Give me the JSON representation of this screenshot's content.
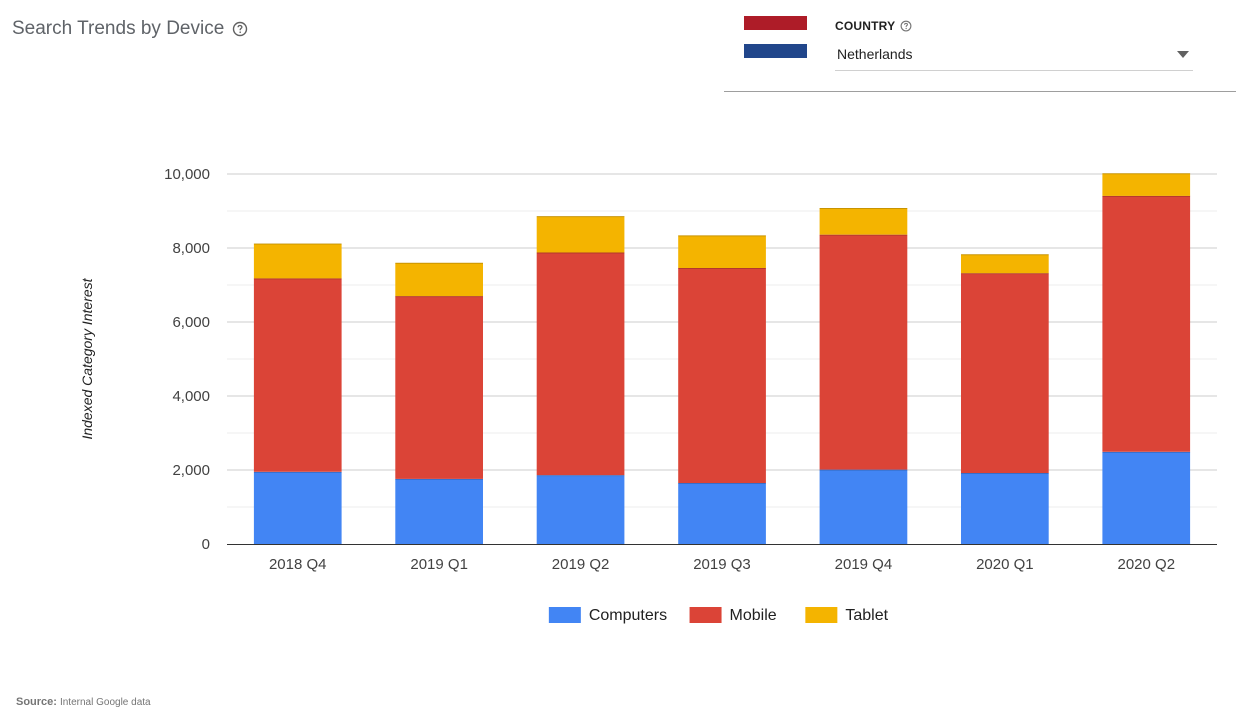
{
  "header": {
    "title": "Search Trends by Device",
    "help_icon": "help-circle-icon"
  },
  "country": {
    "label": "COUNTRY",
    "help_icon": "help-circle-icon",
    "selected": "Netherlands",
    "flag_icon": "netherlands-flag-icon",
    "flag_colors": [
      "#ae1c28",
      "#ffffff",
      "#21468b"
    ]
  },
  "source": {
    "label": "Source:",
    "value": "Internal Google data"
  },
  "chart_data": {
    "type": "bar",
    "stacked": true,
    "categories": [
      "2018 Q4",
      "2019 Q1",
      "2019 Q2",
      "2019 Q3",
      "2019 Q4",
      "2020 Q1",
      "2020 Q2"
    ],
    "series": [
      {
        "name": "Computers",
        "color": "#4285f4",
        "values": [
          1950,
          1760,
          1860,
          1650,
          2010,
          1920,
          2490
        ]
      },
      {
        "name": "Mobile",
        "color": "#db4437",
        "values": [
          5230,
          4940,
          6020,
          5810,
          6350,
          5400,
          6920
        ]
      },
      {
        "name": "Tablet",
        "color": "#f4b400",
        "values": [
          940,
          900,
          980,
          880,
          720,
          510,
          610
        ]
      }
    ],
    "ylabel": "Indexed Category Interest",
    "xlabel": "",
    "ylim": [
      0,
      10000
    ],
    "yticks": [
      0,
      2000,
      4000,
      6000,
      8000,
      10000
    ],
    "ytick_labels": [
      "0",
      "2,000",
      "4,000",
      "6,000",
      "8,000",
      "10,000"
    ],
    "grid": true,
    "legend_position": "bottom"
  }
}
